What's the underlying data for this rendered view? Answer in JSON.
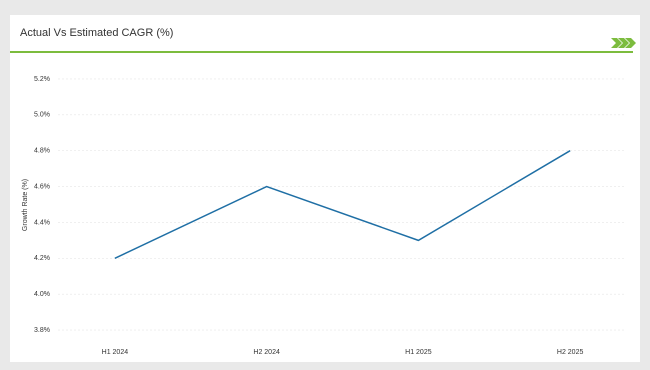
{
  "chart_data": {
    "type": "line",
    "title": "Actual Vs Estimated CAGR (%)",
    "y_label": "Growth Rate (%)",
    "categories": [
      "H1 2024",
      "H2 2024",
      "H1 2025",
      "H2 2025"
    ],
    "series": [
      {
        "name": "Growth Rate",
        "color": "#1f6fa5",
        "values": [
          4.2,
          4.6,
          4.3,
          4.8
        ]
      }
    ],
    "ylim": [
      3.7,
      5.3
    ],
    "yticks": [
      {
        "value": 3.8,
        "label": "3.8%"
      },
      {
        "value": 4.0,
        "label": "4.0%"
      },
      {
        "value": 4.2,
        "label": "4.2%"
      },
      {
        "value": 4.4,
        "label": "4.4%"
      },
      {
        "value": 4.6,
        "label": "4.6%"
      },
      {
        "value": 4.8,
        "label": "4.8%"
      },
      {
        "value": 5.0,
        "label": "5.0%"
      },
      {
        "value": 5.2,
        "label": "5.2%"
      }
    ],
    "grid": true
  }
}
